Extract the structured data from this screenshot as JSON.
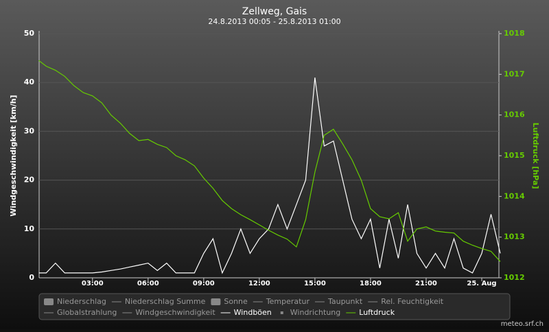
{
  "chart_data": {
    "type": "line",
    "title": "Zellweg, Gais",
    "subtitle": "24.8.2013 00:05 - 25.8.2013 01:00",
    "y_label": "Windgeschwindigkeit [km/h]",
    "y2_label": "Luftdruck [hPa]",
    "credits": "meteo.srf.ch",
    "grid": true,
    "x": [
      0.1,
      0.5,
      1,
      1.5,
      2,
      2.5,
      3,
      3.5,
      4,
      4.5,
      5,
      5.5,
      6,
      6.5,
      7,
      7.5,
      8,
      8.5,
      9,
      9.5,
      10,
      10.5,
      11,
      11.5,
      12,
      12.5,
      13,
      13.5,
      14,
      14.5,
      15,
      15.5,
      16,
      16.5,
      17,
      17.5,
      18,
      18.5,
      19,
      19.5,
      20,
      20.5,
      21,
      21.5,
      22,
      22.5,
      23,
      23.5,
      24,
      24.5,
      25
    ],
    "xlim": [
      0.083,
      25
    ],
    "xticks": [
      {
        "value": 3,
        "label": "03:00"
      },
      {
        "value": 6,
        "label": "06:00"
      },
      {
        "value": 9,
        "label": "09:00"
      },
      {
        "value": 12,
        "label": "12:00"
      },
      {
        "value": 15,
        "label": "15:00"
      },
      {
        "value": 18,
        "label": "18:00"
      },
      {
        "value": 21,
        "label": "21:00"
      },
      {
        "value": 24,
        "label": "25. Aug"
      }
    ],
    "ylim": [
      0,
      50
    ],
    "yticks": [
      0,
      10,
      20,
      30,
      40,
      50
    ],
    "y2lim": [
      1012,
      1018
    ],
    "y2ticks": [
      1012,
      1013,
      1014,
      1015,
      1016,
      1017,
      1018
    ],
    "series": [
      {
        "name": "Niederschlag",
        "hidden": true,
        "symbol": "box"
      },
      {
        "name": "Niederschlag Summe",
        "hidden": true,
        "symbol": "line"
      },
      {
        "name": "Sonne",
        "hidden": true,
        "symbol": "box"
      },
      {
        "name": "Temperatur",
        "hidden": true,
        "symbol": "line"
      },
      {
        "name": "Taupunkt",
        "hidden": true,
        "symbol": "line"
      },
      {
        "name": "Rel. Feuchtigkeit",
        "hidden": true,
        "symbol": "line"
      },
      {
        "name": "Globalstrahlung",
        "hidden": true,
        "symbol": "line"
      },
      {
        "name": "Windgeschwindigkeit",
        "hidden": true,
        "symbol": "line"
      },
      {
        "name": "Windböen",
        "color": "#ffffff",
        "symbol": "line",
        "values": [
          1,
          1,
          3,
          1,
          1,
          1,
          1,
          1.2,
          1.5,
          1.8,
          2.2,
          2.6,
          3,
          1.5,
          3,
          1,
          1,
          1,
          5,
          8,
          1,
          5,
          10,
          5,
          8,
          10,
          15,
          10,
          15,
          20,
          41,
          27,
          28,
          20,
          12,
          8,
          12,
          2,
          12,
          4,
          15,
          5,
          2,
          5,
          2,
          8,
          2,
          1,
          5,
          13,
          5
        ]
      },
      {
        "name": "Windrichtung",
        "hidden": true,
        "symbol": "dot"
      },
      {
        "name": "Luftdruck",
        "color": "#66cc00",
        "symbol": "line",
        "axis": "y2",
        "values": [
          1017.34,
          1017.2,
          1017.1,
          1016.95,
          1016.72,
          1016.55,
          1016.47,
          1016.3,
          1016.0,
          1015.8,
          1015.55,
          1015.37,
          1015.4,
          1015.28,
          1015.2,
          1015.0,
          1014.9,
          1014.75,
          1014.45,
          1014.2,
          1013.9,
          1013.7,
          1013.55,
          1013.43,
          1013.3,
          1013.17,
          1013.05,
          1012.95,
          1012.76,
          1013.43,
          1014.6,
          1015.5,
          1015.65,
          1015.29,
          1014.9,
          1014.4,
          1013.7,
          1013.5,
          1013.45,
          1013.6,
          1012.9,
          1013.2,
          1013.25,
          1013.15,
          1013.12,
          1013.1,
          1012.9,
          1012.8,
          1012.72,
          1012.65,
          1012.4
        ]
      }
    ]
  }
}
